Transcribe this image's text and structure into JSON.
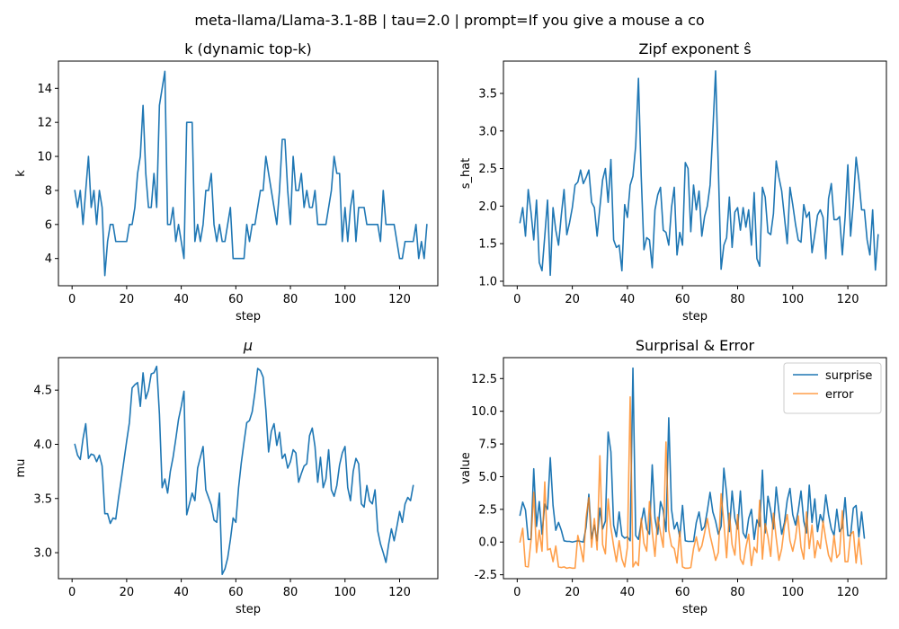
{
  "figure": {
    "suptitle": "meta-llama/Llama-3.1-8B | tau=2.0 | prompt=If you give a mouse a co"
  },
  "colors": {
    "series1": "#1f77b4",
    "series2": "#ff7f0e",
    "axis": "#000000"
  },
  "chart_data": [
    {
      "type": "line",
      "title": "k (dynamic top-k)",
      "xlabel": "step",
      "ylabel": "k",
      "xlim": [
        -5,
        134
      ],
      "ylim": [
        2.4,
        15.6
      ],
      "xticks": [
        0,
        20,
        40,
        60,
        80,
        100,
        120
      ],
      "yticks": [
        4,
        6,
        8,
        10,
        12,
        14
      ],
      "series": [
        {
          "x_start": 1,
          "values": [
            8,
            7,
            8,
            6,
            8,
            10,
            7,
            8,
            6,
            8,
            7,
            3,
            5,
            6,
            6,
            5,
            5,
            5,
            5,
            5,
            6,
            6,
            7,
            9,
            10,
            13,
            9,
            7,
            7,
            9,
            7,
            13,
            14,
            15,
            6,
            6,
            7,
            5,
            6,
            5,
            4,
            12,
            12,
            12,
            5,
            6,
            5,
            6,
            8,
            8,
            9,
            6,
            5,
            6,
            5,
            5,
            6,
            7,
            4,
            4,
            4,
            4,
            4,
            6,
            5,
            6,
            6,
            7,
            8,
            8,
            10,
            9,
            8,
            7,
            6,
            8,
            11,
            11,
            8,
            6,
            10,
            8,
            8,
            9,
            7,
            8,
            7,
            7,
            8,
            6,
            6,
            6,
            6,
            7,
            8,
            10,
            9,
            9,
            5,
            7,
            5,
            7,
            8,
            5,
            7,
            7,
            7,
            6,
            6,
            6,
            6,
            6,
            5,
            8,
            6,
            6,
            6,
            6,
            5,
            4,
            4,
            5,
            5,
            5,
            5,
            6,
            4,
            5,
            4,
            6
          ]
        }
      ]
    },
    {
      "type": "line",
      "title": "Zipf exponent ŝ",
      "xlabel": "step",
      "ylabel": "s_hat",
      "xlim": [
        -5,
        134
      ],
      "ylim": [
        0.94,
        3.93
      ],
      "xticks": [
        0,
        20,
        40,
        60,
        80,
        100,
        120
      ],
      "yticks": [
        1.0,
        1.5,
        2.0,
        2.5,
        3.0,
        3.5
      ],
      "series": [
        {
          "x_start": 1,
          "values": [
            1.78,
            1.98,
            1.6,
            2.22,
            1.92,
            1.55,
            2.08,
            1.25,
            1.14,
            1.6,
            2.08,
            1.08,
            1.98,
            1.68,
            1.48,
            1.88,
            2.22,
            1.62,
            1.78,
            1.98,
            2.28,
            2.32,
            2.48,
            2.3,
            2.38,
            2.48,
            2.05,
            1.98,
            1.6,
            1.98,
            2.35,
            2.5,
            2.05,
            2.62,
            1.55,
            1.45,
            1.48,
            1.14,
            2.02,
            1.85,
            2.28,
            2.4,
            2.8,
            3.7,
            2.4,
            1.42,
            1.58,
            1.55,
            1.18,
            1.95,
            2.15,
            2.25,
            1.68,
            1.65,
            1.48,
            1.98,
            2.25,
            1.35,
            1.65,
            1.48,
            2.58,
            2.5,
            1.66,
            2.28,
            1.95,
            2.2,
            1.6,
            1.86,
            2.0,
            2.28,
            3.0,
            3.8,
            2.5,
            1.16,
            1.48,
            1.58,
            2.12,
            1.45,
            1.92,
            1.98,
            1.68,
            1.98,
            1.72,
            1.95,
            1.48,
            2.18,
            1.3,
            1.2,
            2.25,
            2.12,
            1.65,
            1.62,
            1.9,
            2.6,
            2.38,
            2.2,
            1.85,
            1.5,
            2.25,
            2.02,
            1.76,
            1.55,
            1.52,
            2.02,
            1.85,
            1.92,
            1.38,
            1.62,
            1.88,
            1.95,
            1.85,
            1.3,
            2.1,
            2.3,
            1.82,
            1.82,
            1.86,
            1.35,
            1.85,
            2.55,
            1.6,
            2.05,
            2.65,
            2.35,
            1.95,
            1.95,
            1.55,
            1.35,
            1.95,
            1.15,
            1.62
          ]
        }
      ]
    },
    {
      "type": "line",
      "title": "μ",
      "xlabel": "step",
      "ylabel": "mu",
      "xlim": [
        -5,
        134
      ],
      "ylim": [
        2.76,
        4.8
      ],
      "xticks": [
        0,
        20,
        40,
        60,
        80,
        100,
        120
      ],
      "yticks": [
        3.0,
        3.5,
        4.0,
        4.5
      ],
      "series": [
        {
          "x_start": 1,
          "values": [
            4.0,
            3.9,
            3.86,
            4.05,
            4.19,
            3.87,
            3.91,
            3.9,
            3.84,
            3.9,
            3.8,
            3.36,
            3.36,
            3.27,
            3.32,
            3.31,
            3.5,
            3.67,
            3.85,
            4.03,
            4.2,
            4.52,
            4.55,
            4.57,
            4.35,
            4.66,
            4.42,
            4.5,
            4.65,
            4.66,
            4.72,
            4.28,
            3.6,
            3.68,
            3.55,
            3.75,
            3.88,
            4.05,
            4.23,
            4.35,
            4.49,
            3.35,
            3.45,
            3.55,
            3.48,
            3.78,
            3.88,
            3.98,
            3.58,
            3.51,
            3.44,
            3.3,
            3.28,
            3.55,
            2.8,
            2.85,
            2.95,
            3.12,
            3.32,
            3.28,
            3.6,
            3.83,
            4.02,
            4.2,
            4.22,
            4.3,
            4.48,
            4.7,
            4.68,
            4.62,
            4.32,
            3.93,
            4.12,
            4.19,
            3.99,
            4.11,
            3.87,
            3.91,
            3.78,
            3.84,
            3.95,
            3.92,
            3.65,
            3.73,
            3.8,
            3.82,
            4.08,
            4.15,
            3.98,
            3.65,
            3.88,
            3.6,
            3.68,
            3.95,
            3.58,
            3.52,
            3.62,
            3.81,
            3.92,
            3.98,
            3.6,
            3.48,
            3.75,
            3.87,
            3.82,
            3.45,
            3.42,
            3.62,
            3.48,
            3.45,
            3.58,
            3.2,
            3.08,
            3.0,
            2.91,
            3.08,
            3.22,
            3.11,
            3.24,
            3.38,
            3.28,
            3.45,
            3.51,
            3.48,
            3.62
          ]
        }
      ]
    },
    {
      "type": "line",
      "title": "Surprisal & Error",
      "xlabel": "step",
      "ylabel": "value",
      "xlim": [
        -5,
        134
      ],
      "ylim": [
        -2.8,
        14.1
      ],
      "xticks": [
        0,
        20,
        40,
        60,
        80,
        100,
        120
      ],
      "yticks": [
        -2.5,
        0.0,
        2.5,
        5.0,
        7.5,
        10.0,
        12.5
      ],
      "legend_position": "top-right",
      "series": [
        {
          "name": "surprise",
          "color": "#1f77b4",
          "x_start": 1,
          "values": [
            2.05,
            3.05,
            2.45,
            0.2,
            0.2,
            5.6,
            1.2,
            3.1,
            0.6,
            2.9,
            2.5,
            6.45,
            2.8,
            0.9,
            1.5,
            0.9,
            0.1,
            0.05,
            0.05,
            0.0,
            0.05,
            0.1,
            0.05,
            0.0,
            1.15,
            3.65,
            0.25,
            1.3,
            0.1,
            2.6,
            1.0,
            1.6,
            8.4,
            6.9,
            1.3,
            0.4,
            2.3,
            0.5,
            0.3,
            0.4,
            0.1,
            13.3,
            0.5,
            0.2,
            1.5,
            2.6,
            1.0,
            0.6,
            5.9,
            1.8,
            0.6,
            3.1,
            2.4,
            0.8,
            9.5,
            2.5,
            1.0,
            1.5,
            0.4,
            2.8,
            0.1,
            0.05,
            0.05,
            0.05,
            1.5,
            2.3,
            0.9,
            1.2,
            2.4,
            3.8,
            2.3,
            1.6,
            0.6,
            1.2,
            5.65,
            3.7,
            0.8,
            3.9,
            1.8,
            1.0,
            3.9,
            0.7,
            0.3,
            1.8,
            2.5,
            0.2,
            1.7,
            1.2,
            5.5,
            0.7,
            3.5,
            2.4,
            1.0,
            4.2,
            2.3,
            0.6,
            1.5,
            3.2,
            4.1,
            2.1,
            1.3,
            2.4,
            3.9,
            1.6,
            0.7,
            4.35,
            1.5,
            3.3,
            0.8,
            2.1,
            1.5,
            3.6,
            2.1,
            1.0,
            0.5,
            2.5,
            0.8,
            1.1,
            3.4,
            0.5,
            0.5,
            2.6,
            2.8,
            0.4,
            2.3,
            0.3
          ]
        },
        {
          "name": "error",
          "color": "#ff7f0e",
          "x_start": 1,
          "values": [
            0.0,
            1.05,
            -1.85,
            -1.9,
            0.1,
            3.8,
            -0.8,
            0.9,
            -0.7,
            4.6,
            -0.6,
            -0.5,
            -1.5,
            -0.3,
            -1.9,
            -1.95,
            -1.9,
            -2.0,
            -1.95,
            -2.0,
            -2.0,
            0.5,
            -0.4,
            -1.5,
            1.9,
            3.4,
            -0.4,
            1.8,
            -0.6,
            6.6,
            -0.2,
            -0.9,
            3.3,
            1.1,
            -0.3,
            -1.5,
            0.1,
            -1.3,
            -1.9,
            -0.4,
            11.1,
            -1.9,
            -1.5,
            -1.8,
            1.8,
            -0.1,
            -0.7,
            3.1,
            0.8,
            -1.1,
            1.9,
            0.7,
            -0.4,
            7.65,
            0.9,
            -0.3,
            -0.5,
            -1.6,
            0.8,
            -1.9,
            -2.0,
            -2.0,
            -1.95,
            -0.5,
            0.4,
            -0.7,
            -0.3,
            0.7,
            1.8,
            0.5,
            -0.4,
            -1.4,
            -0.8,
            3.7,
            1.5,
            -1.2,
            2.2,
            -0.2,
            -1.0,
            2.1,
            -1.3,
            -1.7,
            -0.4,
            0.6,
            -1.8,
            -0.4,
            -0.8,
            3.2,
            -1.3,
            1.4,
            0.4,
            -1.1,
            2.2,
            0.3,
            -1.4,
            -0.5,
            1.2,
            2.1,
            0.1,
            -0.7,
            0.3,
            2.0,
            -0.4,
            -1.3,
            2.3,
            -0.5,
            1.3,
            -1.2,
            0.1,
            -0.5,
            1.6,
            0.2,
            -1.0,
            -1.5,
            0.5,
            -1.2,
            -0.9,
            2.4,
            -1.5,
            -1.5,
            0.6,
            0.8,
            -1.6,
            0.3,
            -1.7
          ]
        }
      ]
    }
  ]
}
